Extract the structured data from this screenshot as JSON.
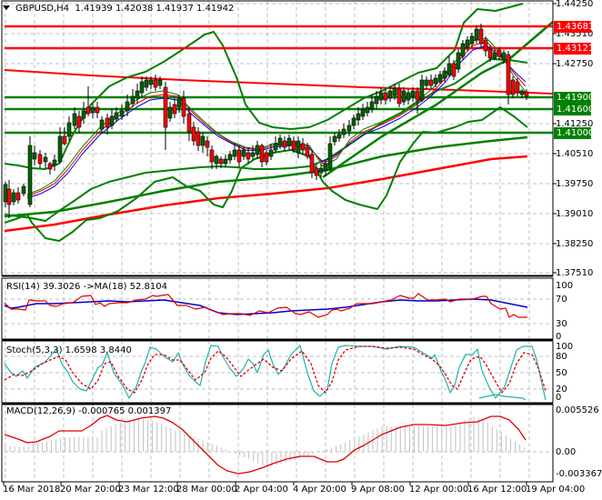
{
  "header": {
    "symbol": "GBPUSD,H4",
    "ohlc": "1.41939 1.42038 1.41937 1.41942"
  },
  "price_axis": {
    "ticks": [
      {
        "label": "1.44250",
        "y": 4
      },
      {
        "label": "1.43510",
        "y": 37
      },
      {
        "label": "1.42750",
        "y": 70
      },
      {
        "label": "1.41250",
        "y": 136
      },
      {
        "label": "1.40510",
        "y": 169
      },
      {
        "label": "1.39750",
        "y": 202
      },
      {
        "label": "1.39010",
        "y": 235
      },
      {
        "label": "1.38250",
        "y": 268
      },
      {
        "label": "1.37510",
        "y": 300
      }
    ],
    "tags": [
      {
        "label": "1.43681",
        "y": 29,
        "color": "#ff0000"
      },
      {
        "label": "1.43121",
        "y": 53,
        "color": "#ff0000"
      },
      {
        "label": "1.41900",
        "y": 107,
        "color": "#008000"
      },
      {
        "label": "1.41600",
        "y": 120,
        "color": "#008000"
      },
      {
        "label": "1.41000",
        "y": 146,
        "color": "#008000"
      }
    ]
  },
  "rsi": {
    "label": "RSI(14) 39.3026  ->MA(18) 52.8104",
    "ticks": [
      {
        "label": "100",
        "y": 314
      },
      {
        "label": "70",
        "y": 329
      },
      {
        "label": "30",
        "y": 356
      },
      {
        "label": "0",
        "y": 370
      }
    ]
  },
  "stoch": {
    "label": "Stoch(5,3,3) 1.6598 3.8440",
    "ticks": [
      {
        "label": "100",
        "y": 381
      },
      {
        "label": "80",
        "y": 392
      },
      {
        "label": "50",
        "y": 410
      },
      {
        "label": "20",
        "y": 428
      },
      {
        "label": "0",
        "y": 437
      }
    ]
  },
  "macd": {
    "label": "MACD(12,26,9) -0.000765 0.001397",
    "ticks": [
      {
        "label": "0.005526",
        "y": 451
      },
      {
        "label": "0.00",
        "y": 497
      },
      {
        "label": "-0.003367",
        "y": 521
      }
    ]
  },
  "time_axis": {
    "labels": [
      {
        "label": "16 Mar 2018",
        "x": 3
      },
      {
        "label": "20 Mar 20:00",
        "x": 66
      },
      {
        "label": "23 Mar 12:00",
        "x": 130
      },
      {
        "label": "28 Mar 00:00",
        "x": 194
      },
      {
        "label": "2 Apr 04:00",
        "x": 258
      },
      {
        "label": "4 Apr 20:00",
        "x": 322
      },
      {
        "label": "9 Apr 08:00",
        "x": 386
      },
      {
        "label": "12 Apr 00:00",
        "x": 450
      },
      {
        "label": "16 Apr 12:00",
        "x": 514
      },
      {
        "label": "19 Apr 04:00",
        "x": 578
      }
    ]
  },
  "colors": {
    "bull": "#006400",
    "bear": "#ff0000",
    "grid": "#c0c0c0",
    "resistance": "#ff0000",
    "support": "#008000",
    "bollinger": "#008000",
    "ma_long": "#ff0000",
    "ma_mid": "#008000",
    "rsi_line": "#e00000",
    "rsi_ma": "#0000d0",
    "stoch_main": "#20b2aa",
    "stoch_signal": "#e00000",
    "macd_hist": "#c0c0c0",
    "macd_signal": "#e00000"
  },
  "chart_data": {
    "type": "candlestick",
    "title": "GBPUSD,H4",
    "ohlc_last": {
      "open": 1.41939,
      "high": 1.42038,
      "low": 1.41937,
      "close": 1.41942
    },
    "ylim": [
      1.3751,
      1.4425
    ],
    "x_labels": [
      "16 Mar 2018",
      "20 Mar 20:00",
      "23 Mar 12:00",
      "28 Mar 00:00",
      "2 Apr 04:00",
      "4 Apr 20:00",
      "9 Apr 08:00",
      "12 Apr 00:00",
      "16 Apr 12:00",
      "19 Apr 04:00"
    ],
    "horizontal_levels": {
      "resistance": [
        1.43681,
        1.43121
      ],
      "support": [
        1.419,
        1.416,
        1.41
      ]
    },
    "close_path_approx": [
      1.394,
      1.397,
      1.4,
      1.402,
      1.406,
      1.41,
      1.414,
      1.416,
      1.42,
      1.422,
      1.42,
      1.412,
      1.407,
      1.404,
      1.403,
      1.405,
      1.407,
      1.408,
      1.409,
      1.408,
      1.403,
      1.401,
      1.407,
      1.412,
      1.415,
      1.418,
      1.419,
      1.421,
      1.425,
      1.431,
      1.436,
      1.433,
      1.429,
      1.43,
      1.42,
      1.4194
    ],
    "indicators": {
      "rsi": {
        "period": 14,
        "value": 39.3026,
        "ma_period": 18,
        "ma_value": 52.8104,
        "levels": [
          0,
          30,
          70,
          100
        ]
      },
      "stochastic": {
        "params": "5,3,3",
        "main": 1.6598,
        "signal": 3.844,
        "levels": [
          0,
          20,
          50,
          80,
          100
        ]
      },
      "macd": {
        "params": "12,26,9",
        "main": -0.000765,
        "signal": 0.001397,
        "ylim": [
          -0.003367,
          0.005526
        ]
      }
    }
  }
}
